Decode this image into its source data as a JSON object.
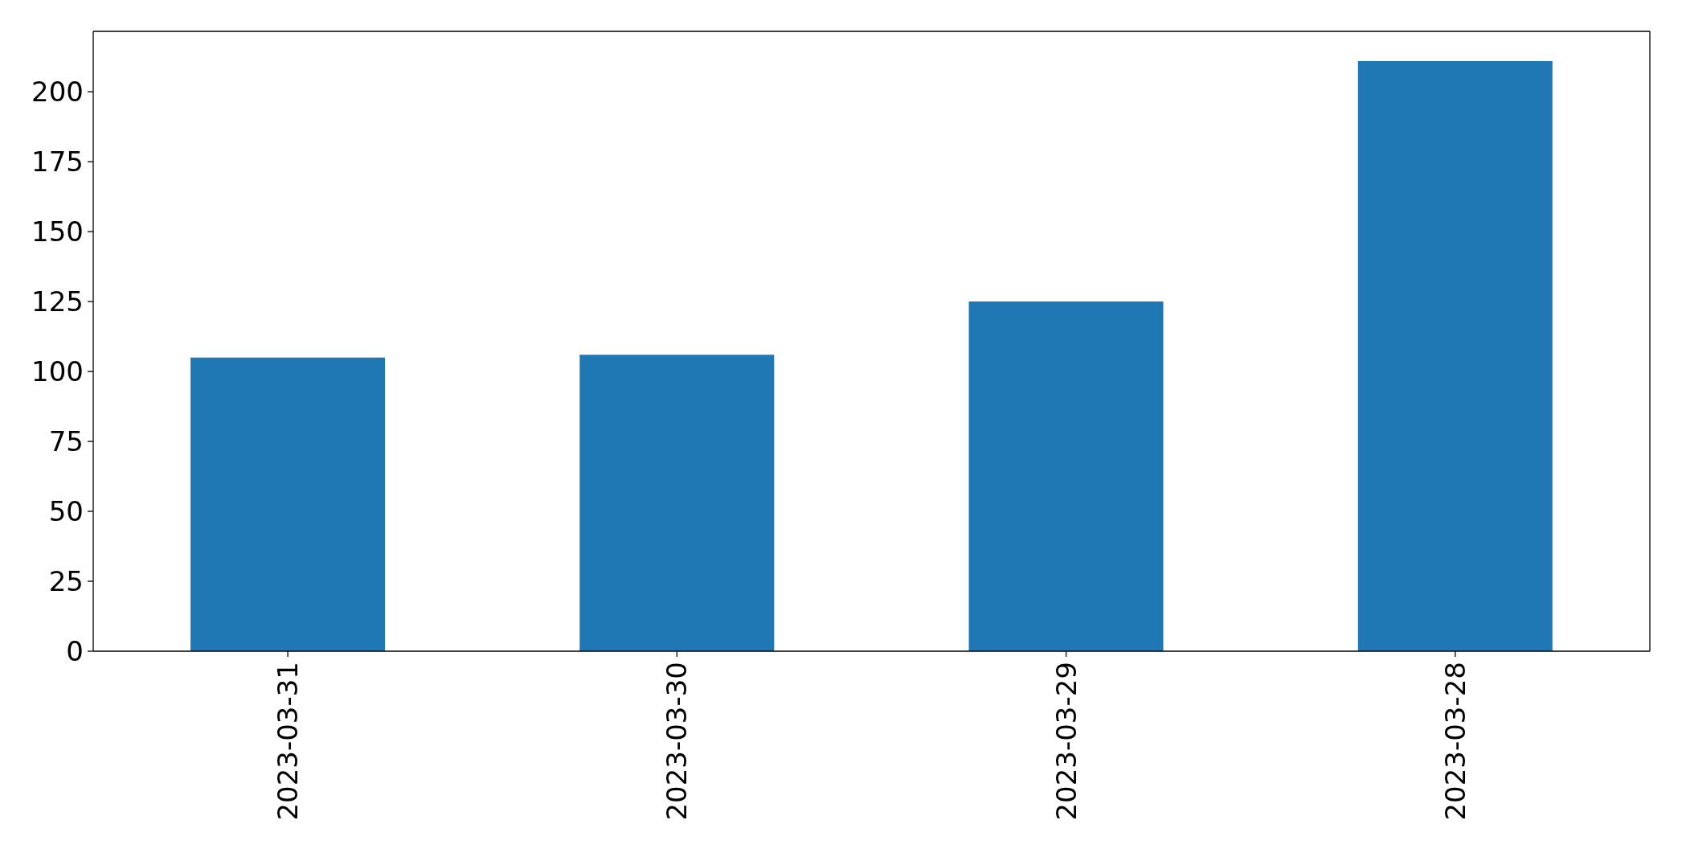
{
  "chart_data": {
    "type": "bar",
    "categories": [
      "2023-03-31",
      "2023-03-30",
      "2023-03-29",
      "2023-03-28"
    ],
    "values": [
      105,
      106,
      125,
      211
    ],
    "color": "#1f77b4",
    "ylim": [
      0,
      221.6
    ],
    "yticks": [
      0,
      25,
      50,
      75,
      100,
      125,
      150,
      175,
      200
    ]
  }
}
